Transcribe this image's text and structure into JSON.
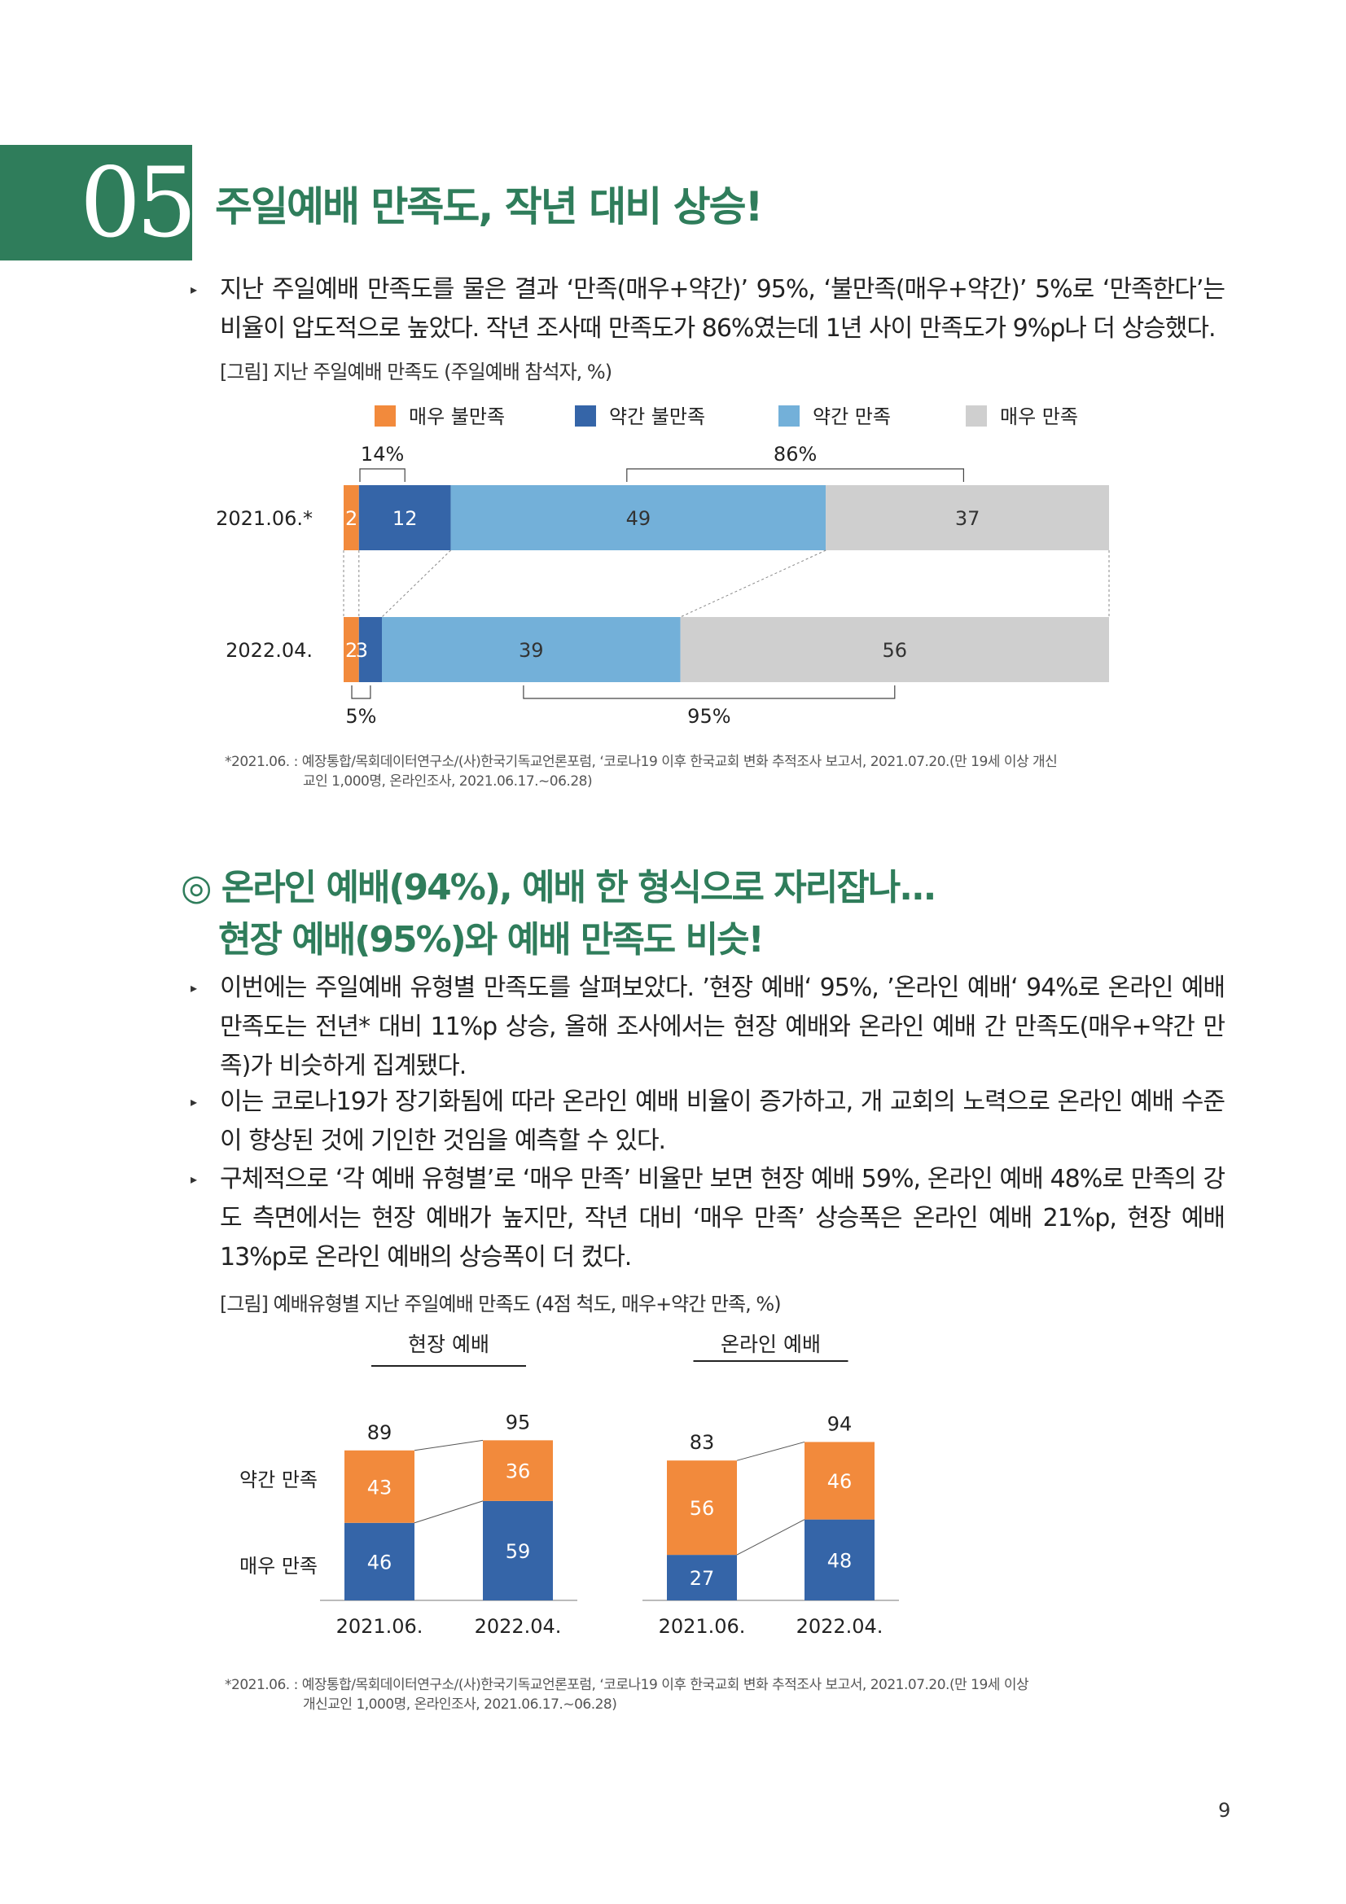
{
  "section": {
    "number": "05",
    "title": "주일예배 만족도, 작년 대비 상승!"
  },
  "intro_bullet": "지난 주일예배 만족도를 물은 결과 ‘만족(매우+약간)’ 95%, ‘불만족(매우+약간)’ 5%로 ‘만족한다’는 비율이 압도적으로 높았다. 작년 조사때 만족도가 86%였는데 1년 사이 만족도가 9%p나 더 상승했다.",
  "figure1": {
    "caption": "[그림] 지난 주일예배 만족도 (주일예배 참석자, %)",
    "note_line1": "*2021.06. : 예장통합/목회데이터연구소/(사)한국기독교언론포럼, ‘코로나19 이후 한국교회 변화 추적조사 보고서, 2021.07.20.(만 19세 이상 개신",
    "note_line2": "교인 1,000명, 온라인조사, 2021.06.17.~06.28)"
  },
  "section2": {
    "heading_line1": "◎ 온라인 예배(94%), 예배 한 형식으로 자리잡나...",
    "heading_line2": "현장 예배(95%)와 예배 만족도 비슷!",
    "bullets": [
      "이번에는 주일예배 유형별 만족도를 살펴보았다. ’현장 예배‘ 95%, ’온라인 예배‘ 94%로 온라인 예배 만족도는 전년* 대비 11%p 상승, 올해 조사에서는 현장 예배와 온라인 예배 간 만족도(매우+약간 만족)가 비슷하게 집계됐다.",
      "이는 코로나19가 장기화됨에 따라 온라인 예배 비율이 증가하고, 개 교회의 노력으로 온라인 예배 수준이 향상된 것에 기인한 것임을 예측할 수 있다.",
      "구체적으로 ‘각 예배 유형별’로 ‘매우 만족’ 비율만 보면 현장 예배 59%, 온라인 예배 48%로 만족의 강도 측면에서는 현장 예배가 높지만, 작년 대비 ‘매우 만족’ 상승폭은 온라인 예배 21%p, 현장 예배 13%p로 온라인 예배의 상승폭이 더 컸다."
    ]
  },
  "figure2": {
    "caption": "[그림] 예배유형별 지난 주일예배 만족도 (4점 척도, 매우+약간 만족, %)",
    "note_line1": "*2021.06. : 예장통합/목회데이터연구소/(사)한국기독교언론포럼, ‘코로나19 이후 한국교회 변화 추적조사 보고서, 2021.07.20.(만 19세 이상",
    "note_line2": "개신교인 1,000명, 온라인조사, 2021.06.17.~06.28)"
  },
  "page_number": "9",
  "chart_data": [
    {
      "type": "bar",
      "orientation": "horizontal-stacked",
      "categories": [
        "2021.06.*",
        "2022.04."
      ],
      "series": [
        {
          "name": "매우 불만족",
          "values": [
            2,
            2
          ],
          "color": "#f28a3c"
        },
        {
          "name": "약간 불만족",
          "values": [
            12,
            3
          ],
          "color": "#3565a8"
        },
        {
          "name": "약간 만족",
          "values": [
            49,
            39
          ],
          "color": "#73b0d9"
        },
        {
          "name": "매우 만족",
          "values": [
            37,
            56
          ],
          "color": "#cfcfcf"
        }
      ],
      "data_labels": [
        [
          "2",
          "12",
          "49",
          "37"
        ],
        [
          "2",
          "3",
          "39",
          "56"
        ]
      ],
      "bracket_labels": {
        "dissatisfied_2021": "14%",
        "satisfied_2021": "86%",
        "dissatisfied_2022": "5%",
        "satisfied_2022": "95%"
      },
      "xlim": [
        0,
        100
      ],
      "legend": "top"
    },
    {
      "type": "bar",
      "orientation": "vertical-stacked",
      "groups": [
        {
          "title": "현장 예배",
          "categories": [
            "2021.06.",
            "2022.04."
          ],
          "very": [
            46,
            59
          ],
          "somewhat": [
            43,
            36
          ],
          "totals": [
            89,
            95
          ]
        },
        {
          "title": "온라인 예배",
          "categories": [
            "2021.06.",
            "2022.04."
          ],
          "very": [
            27,
            48
          ],
          "somewhat": [
            56,
            46
          ],
          "totals": [
            83,
            94
          ]
        }
      ],
      "series": [
        {
          "name": "약간 만족",
          "color": "#f28a3c"
        },
        {
          "name": "매우 만족",
          "color": "#3565a8"
        }
      ],
      "ylim": [
        0,
        100
      ]
    }
  ]
}
